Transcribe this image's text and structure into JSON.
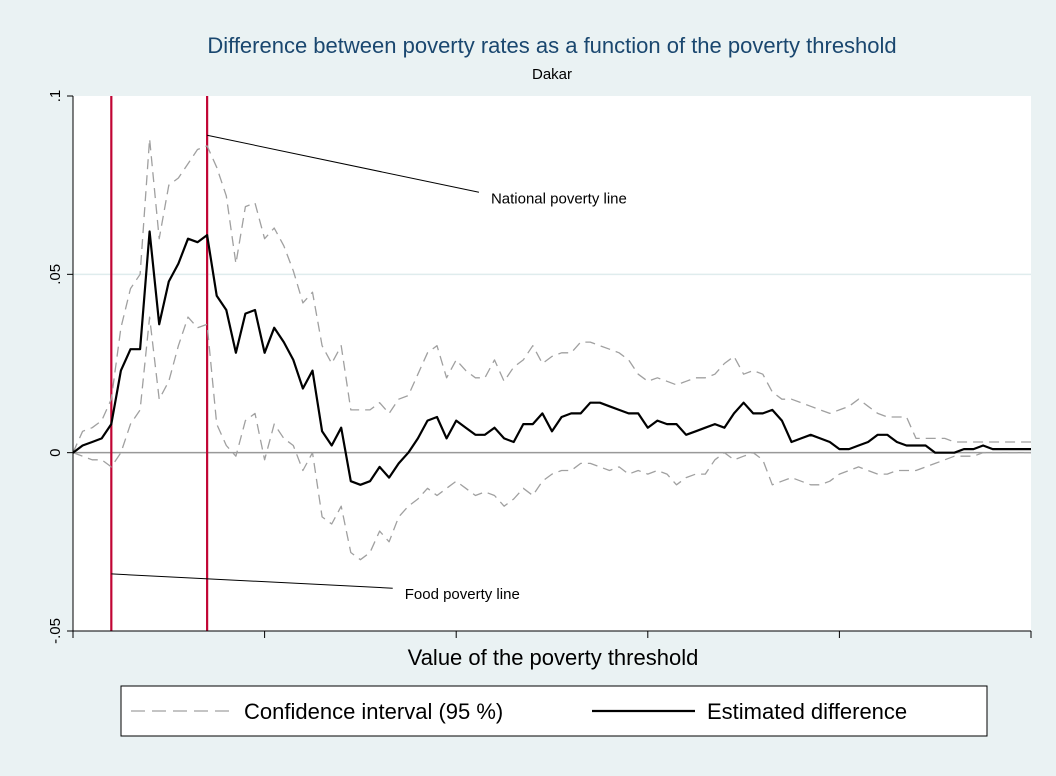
{
  "chart_data": {
    "type": "line",
    "title": "Difference between poverty rates as a function of the poverty threshold",
    "subtitle": "Dakar",
    "xlabel": "Value of the poverty threshold",
    "ylabel": "",
    "ylim": [
      -0.05,
      0.1
    ],
    "yticks": [
      {
        "value": -0.05,
        "label": "-.05"
      },
      {
        "value": 0,
        "label": "0"
      },
      {
        "value": 0.05,
        "label": ".05"
      },
      {
        "value": 0.1,
        "label": ".1"
      }
    ],
    "xticks_count": 6,
    "xlim": [
      0,
      100
    ],
    "grid": true,
    "legend_position": "bottom",
    "colors": {
      "background": "#eaf2f3",
      "plot_background": "#ffffff",
      "title": "#1a476f",
      "grid": "#dfeced",
      "estimate": "#000000",
      "ci": "#a0a0a0",
      "reference_lines": "#c10534",
      "zero_line": "#999999"
    },
    "reference_lines": [
      {
        "name": "Food poverty line",
        "x": 4
      },
      {
        "name": "National poverty line",
        "x": 14
      }
    ],
    "annotations": [
      {
        "text": "National poverty line",
        "x": 43,
        "y": 0.073,
        "anchor_x": 14,
        "anchor_y": 0.089
      },
      {
        "text": "Food poverty line",
        "x": 34,
        "y": -0.038,
        "anchor_x": 4,
        "anchor_y": -0.034
      }
    ],
    "series": [
      {
        "name": "Confidence interval (95 %)",
        "style": "dashed",
        "x": [
          0,
          1,
          2,
          3,
          4,
          5,
          6,
          7,
          8,
          9,
          10,
          11,
          12,
          13,
          14,
          15,
          16,
          17,
          18,
          19,
          20,
          21,
          22,
          23,
          24,
          25,
          26,
          27,
          28,
          29,
          30,
          31,
          32,
          33,
          34,
          35,
          36,
          37,
          38,
          39,
          40,
          41,
          42,
          43,
          44,
          45,
          46,
          47,
          48,
          49,
          50,
          51,
          52,
          53,
          54,
          55,
          56,
          57,
          58,
          59,
          60,
          61,
          62,
          63,
          64,
          65,
          66,
          67,
          68,
          69,
          70,
          71,
          72,
          73,
          74,
          75,
          76,
          77,
          78,
          79,
          80,
          81,
          82,
          83,
          84,
          85,
          86,
          87,
          88,
          89,
          90,
          91,
          92,
          93,
          94,
          95,
          96,
          97,
          98,
          99,
          100
        ],
        "values": [
          0,
          0.006,
          0.007,
          0.009,
          0.015,
          0.035,
          0.046,
          0.05,
          0.088,
          0.06,
          0.075,
          0.077,
          0.081,
          0.085,
          0.086,
          0.08,
          0.072,
          0.053,
          0.069,
          0.07,
          0.06,
          0.063,
          0.058,
          0.051,
          0.042,
          0.045,
          0.03,
          0.025,
          0.03,
          0.012,
          0.012,
          0.012,
          0.014,
          0.011,
          0.015,
          0.016,
          0.022,
          0.028,
          0.03,
          0.021,
          0.026,
          0.023,
          0.021,
          0.021,
          0.026,
          0.02,
          0.024,
          0.026,
          0.03,
          0.025,
          0.027,
          0.028,
          0.028,
          0.031,
          0.031,
          0.03,
          0.029,
          0.028,
          0.026,
          0.022,
          0.02,
          0.021,
          0.02,
          0.019,
          0.02,
          0.021,
          0.021,
          0.022,
          0.025,
          0.027,
          0.022,
          0.023,
          0.022,
          0.017,
          0.015,
          0.015,
          0.014,
          0.013,
          0.012,
          0.011,
          0.012,
          0.013,
          0.015,
          0.013,
          0.011,
          0.01,
          0.01,
          0.01,
          0.004,
          0.004,
          0.004,
          0.004,
          0.003,
          0.003,
          0.003,
          0.003,
          0.003,
          0.003,
          0.003,
          0.003,
          0.003
        ]
      },
      {
        "name": "Confidence interval (95 %) lower",
        "style": "dashed",
        "x": [
          0,
          1,
          2,
          3,
          4,
          5,
          6,
          7,
          8,
          9,
          10,
          11,
          12,
          13,
          14,
          15,
          16,
          17,
          18,
          19,
          20,
          21,
          22,
          23,
          24,
          25,
          26,
          27,
          28,
          29,
          30,
          31,
          32,
          33,
          34,
          35,
          36,
          37,
          38,
          39,
          40,
          41,
          42,
          43,
          44,
          45,
          46,
          47,
          48,
          49,
          50,
          51,
          52,
          53,
          54,
          55,
          56,
          57,
          58,
          59,
          60,
          61,
          62,
          63,
          64,
          65,
          66,
          67,
          68,
          69,
          70,
          71,
          72,
          73,
          74,
          75,
          76,
          77,
          78,
          79,
          80,
          81,
          82,
          83,
          84,
          85,
          86,
          87,
          88,
          89,
          90,
          91,
          92,
          93,
          94,
          95,
          96,
          97,
          98,
          99,
          100
        ],
        "values": [
          0,
          -0.001,
          -0.002,
          -0.002,
          -0.004,
          0,
          0.008,
          0.012,
          0.038,
          0.015,
          0.02,
          0.03,
          0.038,
          0.035,
          0.036,
          0.008,
          0.002,
          -0.001,
          0.009,
          0.011,
          -0.002,
          0.008,
          0.004,
          0.002,
          -0.005,
          0,
          -0.018,
          -0.02,
          -0.015,
          -0.028,
          -0.03,
          -0.028,
          -0.022,
          -0.025,
          -0.018,
          -0.015,
          -0.013,
          -0.01,
          -0.012,
          -0.01,
          -0.008,
          -0.01,
          -0.012,
          -0.011,
          -0.012,
          -0.015,
          -0.013,
          -0.01,
          -0.012,
          -0.008,
          -0.006,
          -0.005,
          -0.005,
          -0.003,
          -0.003,
          -0.004,
          -0.005,
          -0.004,
          -0.006,
          -0.005,
          -0.006,
          -0.005,
          -0.006,
          -0.009,
          -0.007,
          -0.006,
          -0.006,
          -0.002,
          0,
          -0.002,
          -0.001,
          0,
          -0.002,
          -0.009,
          -0.008,
          -0.007,
          -0.008,
          -0.009,
          -0.009,
          -0.008,
          -0.006,
          -0.005,
          -0.004,
          -0.005,
          -0.006,
          -0.006,
          -0.005,
          -0.005,
          -0.005,
          -0.004,
          -0.003,
          -0.002,
          -0.001,
          -0.001,
          -0.001,
          0,
          0,
          0,
          0,
          0,
          0
        ]
      },
      {
        "name": "Estimated difference",
        "style": "solid",
        "x": [
          0,
          1,
          2,
          3,
          4,
          5,
          6,
          7,
          8,
          9,
          10,
          11,
          12,
          13,
          14,
          15,
          16,
          17,
          18,
          19,
          20,
          21,
          22,
          23,
          24,
          25,
          26,
          27,
          28,
          29,
          30,
          31,
          32,
          33,
          34,
          35,
          36,
          37,
          38,
          39,
          40,
          41,
          42,
          43,
          44,
          45,
          46,
          47,
          48,
          49,
          50,
          51,
          52,
          53,
          54,
          55,
          56,
          57,
          58,
          59,
          60,
          61,
          62,
          63,
          64,
          65,
          66,
          67,
          68,
          69,
          70,
          71,
          72,
          73,
          74,
          75,
          76,
          77,
          78,
          79,
          80,
          81,
          82,
          83,
          84,
          85,
          86,
          87,
          88,
          89,
          90,
          91,
          92,
          93,
          94,
          95,
          96,
          97,
          98,
          99,
          100
        ],
        "values": [
          0,
          0.002,
          0.003,
          0.004,
          0.008,
          0.023,
          0.029,
          0.029,
          0.062,
          0.036,
          0.048,
          0.053,
          0.06,
          0.059,
          0.061,
          0.044,
          0.04,
          0.028,
          0.039,
          0.04,
          0.028,
          0.035,
          0.031,
          0.026,
          0.018,
          0.023,
          0.006,
          0.002,
          0.007,
          -0.008,
          -0.009,
          -0.008,
          -0.004,
          -0.007,
          -0.003,
          0,
          0.004,
          0.009,
          0.01,
          0.004,
          0.009,
          0.007,
          0.005,
          0.005,
          0.007,
          0.004,
          0.003,
          0.008,
          0.008,
          0.011,
          0.006,
          0.01,
          0.011,
          0.011,
          0.014,
          0.014,
          0.013,
          0.012,
          0.011,
          0.011,
          0.007,
          0.009,
          0.008,
          0.008,
          0.005,
          0.006,
          0.007,
          0.008,
          0.007,
          0.011,
          0.014,
          0.011,
          0.011,
          0.012,
          0.009,
          0.003,
          0.004,
          0.005,
          0.004,
          0.003,
          0.001,
          0.001,
          0.002,
          0.003,
          0.005,
          0.005,
          0.003,
          0.002,
          0.002,
          0.002,
          0,
          0,
          0,
          0.001,
          0.001,
          0.002,
          0.001,
          0.001,
          0.001,
          0.001,
          0.001
        ]
      }
    ],
    "legend": [
      {
        "label": "Confidence interval (95 %)",
        "style": "dashed"
      },
      {
        "label": "Estimated difference",
        "style": "solid"
      }
    ]
  }
}
